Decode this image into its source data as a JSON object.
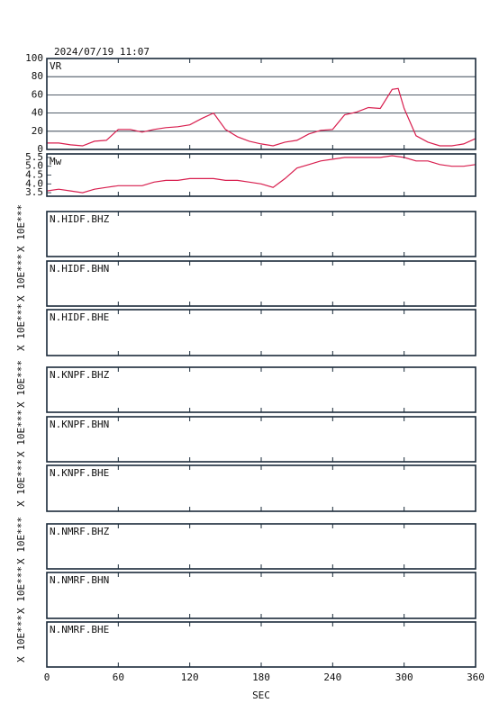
{
  "timestamp": "2024/07/19 11:07",
  "chart_data": [
    {
      "type": "line",
      "title": "VR",
      "x": [
        0,
        10,
        20,
        30,
        40,
        50,
        60,
        70,
        80,
        90,
        100,
        110,
        120,
        130,
        140,
        150,
        160,
        170,
        180,
        190,
        200,
        210,
        220,
        230,
        240,
        250,
        260,
        270,
        280,
        290,
        295,
        300,
        310,
        320,
        330,
        340,
        350,
        360
      ],
      "values": [
        7,
        7,
        5,
        4,
        9,
        10,
        22,
        22,
        19,
        22,
        24,
        25,
        27,
        34,
        40,
        22,
        14,
        9,
        6,
        4,
        8,
        10,
        17,
        21,
        22,
        38,
        41,
        46,
        45,
        66,
        67,
        45,
        15,
        8,
        4,
        4,
        6,
        12
      ],
      "color": "#d81e4e",
      "ylim": [
        0,
        100
      ],
      "yticks": [
        0,
        20,
        40,
        60,
        80,
        100
      ],
      "grid": true
    },
    {
      "type": "line",
      "title": "Mw",
      "x": [
        0,
        10,
        20,
        30,
        40,
        50,
        60,
        70,
        80,
        90,
        100,
        110,
        120,
        130,
        140,
        150,
        160,
        170,
        180,
        190,
        200,
        210,
        220,
        230,
        240,
        250,
        260,
        270,
        280,
        290,
        300,
        310,
        320,
        330,
        340,
        350,
        360
      ],
      "values": [
        3.6,
        3.7,
        3.6,
        3.5,
        3.7,
        3.8,
        3.9,
        3.9,
        3.9,
        4.1,
        4.2,
        4.2,
        4.3,
        4.3,
        4.3,
        4.2,
        4.2,
        4.1,
        4.0,
        3.8,
        4.3,
        4.9,
        5.1,
        5.3,
        5.4,
        5.5,
        5.5,
        5.5,
        5.5,
        5.6,
        5.5,
        5.3,
        5.3,
        5.1,
        5.0,
        5.0,
        5.1
      ],
      "color": "#d81e4e",
      "ylim": [
        3.3,
        5.7
      ],
      "yticks": [
        3.5,
        {
          "value": 4,
          "label": "4.0"
        },
        4.5,
        {
          "value": 5,
          "label": "5.0"
        },
        5.5
      ],
      "grid": false
    }
  ],
  "traces": [
    {
      "station": "N.HIDF.BHZ",
      "scale": "X 10E***"
    },
    {
      "station": "N.HIDF.BHN",
      "scale": "X 10E***"
    },
    {
      "station": "N.HIDF.BHE",
      "scale": "X 10E***"
    },
    {
      "station": "N.KNPF.BHZ",
      "scale": "X 10E***"
    },
    {
      "station": "N.KNPF.BHN",
      "scale": "X 10E***"
    },
    {
      "station": "N.KNPF.BHE",
      "scale": "X 10E***"
    },
    {
      "station": "N.NMRF.BHZ",
      "scale": "X 10E***"
    },
    {
      "station": "N.NMRF.BHN",
      "scale": "X 10E***"
    },
    {
      "station": "N.NMRF.BHE",
      "scale": "X 10E***"
    }
  ],
  "time_axis": {
    "xlabel": "SEC",
    "xlim": [
      0,
      360
    ],
    "xticks": [
      0,
      60,
      120,
      180,
      240,
      300,
      360
    ]
  }
}
